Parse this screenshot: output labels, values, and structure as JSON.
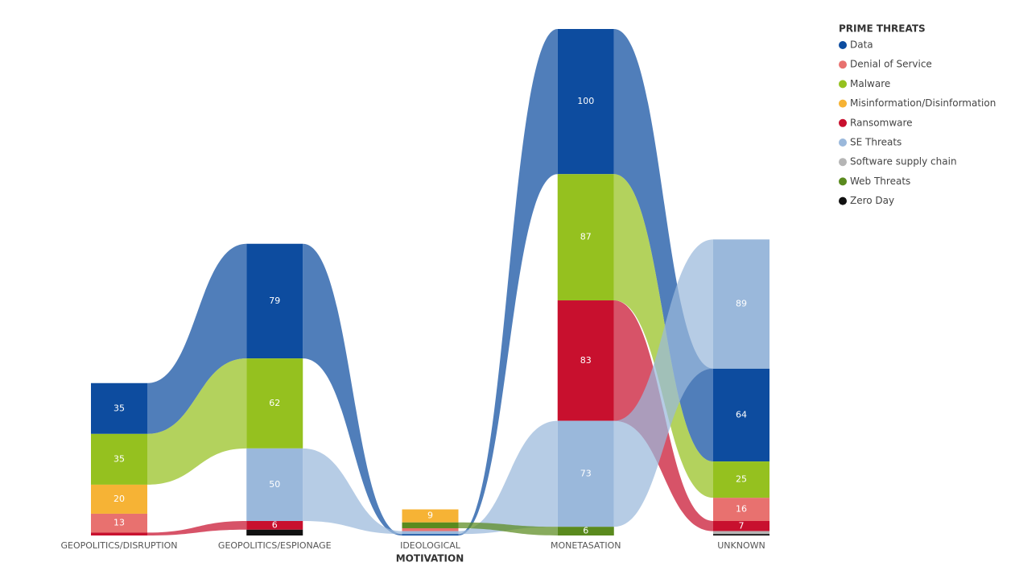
{
  "chart_data": {
    "type": "ribbon",
    "x_label": "MOTIVATION",
    "legend_title": "PRIME THREATS",
    "legend_position": "right",
    "categories": [
      "GEOPOLITICS/DISRUPTION",
      "GEOPOLITICS/ESPIONAGE",
      "IDEOLOGICAL",
      "MONETASATION",
      "UNKNOWN"
    ],
    "series": [
      {
        "name": "Data",
        "color": "#0d4c9f",
        "values": [
          35,
          79,
          1,
          100,
          64
        ]
      },
      {
        "name": "Denial of Service",
        "color": "#e8716f",
        "values": [
          13,
          null,
          2,
          null,
          16
        ]
      },
      {
        "name": "Malware",
        "color": "#95c11f",
        "values": [
          35,
          62,
          null,
          87,
          25
        ]
      },
      {
        "name": "Misinformation/Disinformation",
        "color": "#f6b335",
        "values": [
          20,
          null,
          9,
          null,
          null
        ]
      },
      {
        "name": "Ransomware",
        "color": "#c8102e",
        "values": [
          2,
          6,
          null,
          83,
          7
        ]
      },
      {
        "name": "SE Threats",
        "color": "#9ab8db",
        "values": [
          null,
          50,
          2,
          73,
          89
        ]
      },
      {
        "name": "Software supply chain",
        "color": "#b5b5b5",
        "values": [
          null,
          null,
          null,
          null,
          2
        ]
      },
      {
        "name": "Web Threats",
        "color": "#5a8a1e",
        "values": [
          null,
          null,
          4,
          6,
          null
        ]
      },
      {
        "name": "Zero Day",
        "color": "#111111",
        "values": [
          null,
          4,
          null,
          null,
          1
        ]
      }
    ]
  }
}
